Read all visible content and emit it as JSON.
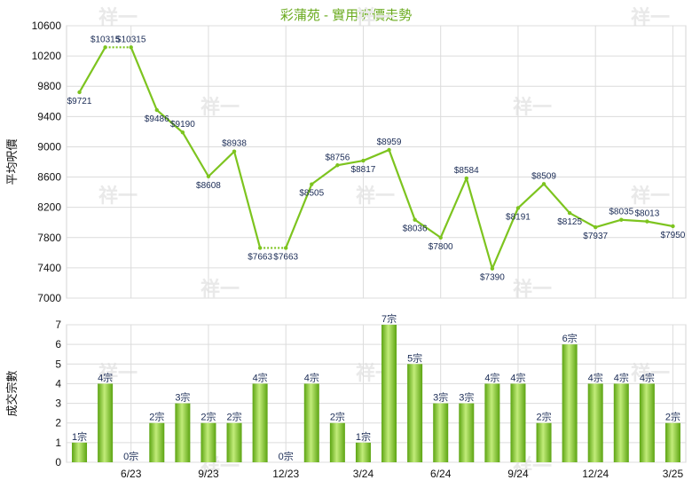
{
  "title": "彩蒲苑 - 實用呎價走勢",
  "watermark": "祥一",
  "colors": {
    "line": "#7dc41f",
    "bar_light": "#c2ec7a",
    "bar_dark": "#5ca412",
    "title": "#6aaa1e"
  },
  "chart_data": [
    {
      "type": "line",
      "ylabel": "平均呎價",
      "ylim": [
        7000,
        10600
      ],
      "yticks": [
        7000,
        7400,
        7800,
        8200,
        8600,
        9000,
        9400,
        9800,
        10200,
        10600
      ],
      "grid": true,
      "x_tick_labels": [
        "6/23",
        "9/23",
        "12/23",
        "3/24",
        "6/24",
        "9/24",
        "12/24",
        "3/25"
      ],
      "values": [
        9721,
        10315,
        10315,
        9486,
        9190,
        8608,
        8938,
        7663,
        7663,
        8505,
        8756,
        8817,
        8959,
        8036,
        7800,
        8584,
        7390,
        8191,
        8509,
        8125,
        7937,
        8035,
        8013,
        7950
      ],
      "labels": [
        "$9721",
        "$10315",
        "$10315",
        "$9486",
        "$9190",
        "$8608",
        "$8938",
        "$7663",
        "$7663",
        "$8505",
        "$8756",
        "$8817",
        "$8959",
        "$8036",
        "$7800",
        "$8584",
        "$7390",
        "$8191",
        "$8509",
        "$8125",
        "$7937",
        "$8035",
        "$8013",
        "$7950"
      ],
      "dotted_segments": [
        1,
        7
      ]
    },
    {
      "type": "bar",
      "ylabel": "成交宗數",
      "ylim": [
        0,
        7
      ],
      "yticks": [
        0,
        1,
        2,
        3,
        4,
        5,
        6,
        7
      ],
      "grid": true,
      "x_tick_labels": [
        "6/23",
        "9/23",
        "12/23",
        "3/24",
        "6/24",
        "9/24",
        "12/24",
        "3/25"
      ],
      "values": [
        1,
        4,
        0,
        2,
        3,
        2,
        2,
        4,
        0,
        4,
        2,
        1,
        7,
        5,
        3,
        3,
        4,
        4,
        2,
        6,
        4,
        4,
        4,
        2
      ],
      "labels": [
        "1宗",
        "4宗",
        "0宗",
        "2宗",
        "3宗",
        "2宗",
        "2宗",
        "4宗",
        "0宗",
        "4宗",
        "2宗",
        "1宗",
        "7宗",
        "5宗",
        "3宗",
        "3宗",
        "4宗",
        "4宗",
        "2宗",
        "6宗",
        "4宗",
        "4宗",
        "4宗",
        "2宗"
      ]
    }
  ]
}
